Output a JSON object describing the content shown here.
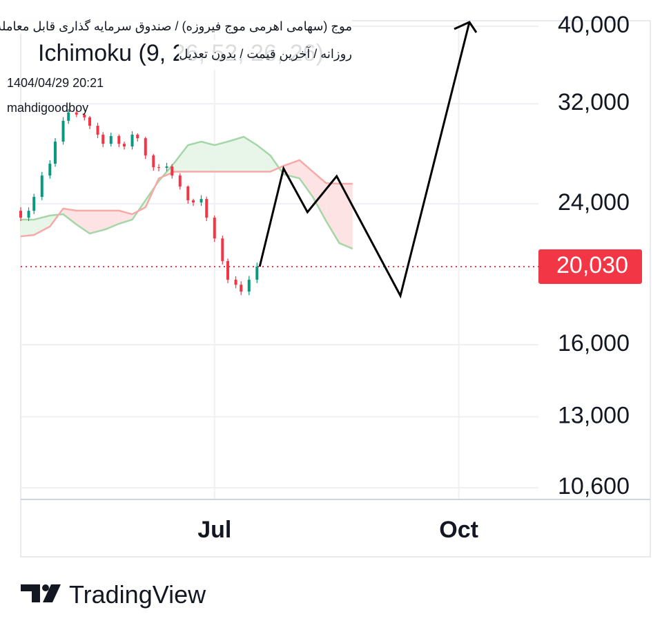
{
  "header": {
    "title": "موج (سهامی اهرمی موج فیروزه) / صندوق سرمایه گذاری قابل معامله",
    "subtitle": "روزانه / آخرین قیمت / بدون تعدیل",
    "datetime": "1404/04/29 20:21",
    "author": "mahdigoodboy"
  },
  "footer": {
    "brand": "TradingView"
  },
  "chart_data": {
    "type": "candlestick",
    "indicator_label": "Ichimoku (9, 26, 52, 26, 26)",
    "y_scale": "log",
    "grid": true,
    "xlim": [
      -73,
      122
    ],
    "xticks": [
      {
        "value": 0,
        "label": "Jul"
      },
      {
        "value": 92,
        "label": "Oct"
      }
    ],
    "ylim": [
      10270,
      40640
    ],
    "yticks": [
      {
        "value": 10600,
        "label": "10,600"
      },
      {
        "value": 13000,
        "label": "13,000"
      },
      {
        "value": 16000,
        "label": "16,000"
      },
      {
        "value": 24000,
        "label": "24,000"
      },
      {
        "value": 32000,
        "label": "32,000"
      },
      {
        "value": 40000,
        "label": "40,000"
      }
    ],
    "up_color": "#089981",
    "down_color": "#f23645",
    "candles": {
      "x": [
        -73,
        -70,
        -68,
        -65,
        -62,
        -60,
        -57,
        -55,
        -52,
        -49,
        -47,
        -44,
        -42,
        -39,
        -36,
        -34,
        -31,
        -29,
        -26,
        -23,
        -21,
        -18,
        -16,
        -13,
        -10,
        -8,
        -5,
        -3,
        0,
        3,
        5,
        8,
        10,
        13,
        16
      ],
      "open": [
        23520,
        23060,
        23520,
        24480,
        26030,
        26930,
        28700,
        30470,
        31210,
        31020,
        30770,
        30040,
        29280,
        28520,
        29160,
        28520,
        28300,
        29280,
        28980,
        27580,
        26660,
        26610,
        26720,
        26030,
        25220,
        24240,
        24090,
        24330,
        23060,
        21720,
        20350,
        19290,
        19010,
        18640,
        19290
      ],
      "high": [
        23760,
        23750,
        24700,
        26300,
        27200,
        28990,
        30780,
        31520,
        31400,
        31100,
        30900,
        30300,
        29500,
        29450,
        29300,
        28700,
        29570,
        29400,
        29100,
        27700,
        26900,
        27000,
        26900,
        26200,
        25300,
        24350,
        24600,
        24500,
        23200,
        21900,
        20500,
        19480,
        19200,
        19500,
        20260
      ],
      "low": [
        22830,
        22840,
        23300,
        24250,
        25800,
        26700,
        28450,
        30200,
        30800,
        30500,
        29750,
        28990,
        28250,
        28300,
        28250,
        28050,
        28050,
        28700,
        27300,
        26400,
        26350,
        26350,
        25800,
        25000,
        24000,
        23850,
        23850,
        22830,
        21500,
        20150,
        19100,
        18820,
        18450,
        18450,
        19100
      ],
      "close": [
        23060,
        23520,
        24480,
        26030,
        26930,
        28700,
        30470,
        31210,
        31020,
        30770,
        30040,
        29280,
        28520,
        29160,
        28520,
        28300,
        29280,
        28980,
        27580,
        26660,
        26610,
        26720,
        26030,
        25220,
        24240,
        24090,
        24330,
        23060,
        21720,
        20350,
        19290,
        19010,
        18640,
        19290,
        20030
      ]
    },
    "cloud": {
      "x": [
        -73,
        -68,
        -62,
        -57,
        -52,
        -47,
        -41,
        -36,
        -31,
        -26,
        -21,
        -15,
        -10,
        -5,
        0,
        5,
        11,
        16,
        21,
        26,
        32,
        37,
        42,
        47,
        52
      ],
      "span_a": [
        22930,
        22930,
        23200,
        23290,
        22610,
        22030,
        22300,
        22660,
        22930,
        24240,
        25620,
        27040,
        28410,
        28700,
        28410,
        28700,
        29100,
        28410,
        27580,
        26120,
        25820,
        24480,
        22840,
        21430,
        21090
      ],
      "span_b": [
        21850,
        21940,
        22480,
        23670,
        23530,
        23530,
        23530,
        23530,
        23290,
        23760,
        25820,
        26320,
        26320,
        26320,
        26320,
        26320,
        26320,
        26320,
        26320,
        26770,
        27210,
        26320,
        25470,
        25420,
        25420
      ],
      "a_color": "#a5d6a7",
      "b_color": "#f7a9a7",
      "up_fill": "#e8f5e9",
      "down_fill": "#fde3e3"
    },
    "projection": {
      "x": [
        17,
        26,
        35,
        46,
        70,
        96
      ],
      "values": [
        20030,
        26560,
        23430,
        25980,
        18420,
        40480
      ],
      "color": "#000000"
    },
    "last_value": {
      "value": 20030,
      "label": "20,030",
      "color": "#f23645"
    }
  }
}
